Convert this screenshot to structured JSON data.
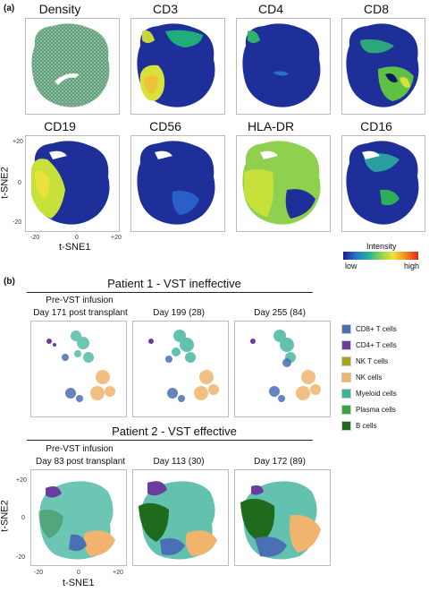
{
  "panel_a": {
    "letter": "(a)",
    "markers": [
      "Density",
      "CD3",
      "CD4",
      "CD8",
      "CD19",
      "CD56",
      "HLA-DR",
      "CD16"
    ],
    "y_axis_label": "t-SNE2",
    "x_axis_label": "t-SNE1",
    "y_ticks": [
      "+20",
      "0",
      "-20"
    ],
    "x_ticks": [
      "-20",
      "0",
      "+20"
    ],
    "intensity_legend": {
      "title": "Intensity",
      "low": "low",
      "high": "high",
      "colors": [
        "#1a1f8c",
        "#2c6fd1",
        "#1fb49a",
        "#8fd14f",
        "#f2e23a",
        "#f28a1e",
        "#e3241b"
      ]
    }
  },
  "panel_b": {
    "letter": "(b)",
    "patient1": {
      "title": "Patient 1 - VST ineffective",
      "pre_label_1": "Pre-VST infusion",
      "time_labels": [
        "Day 171 post transplant",
        "Day 199 (28)",
        "Day 255 (84)"
      ]
    },
    "patient2": {
      "title": "Patient 2 - VST effective",
      "pre_label_1": "Pre-VST infusion",
      "time_labels": [
        "Day 83 post transplant",
        "Day 113 (30)",
        "Day 172 (89)"
      ]
    },
    "y_axis_label": "t-SNE2",
    "x_axis_label": "t-SNE1",
    "y_ticks": [
      "+20",
      "0",
      "-20"
    ],
    "x_ticks": [
      "-20",
      "0",
      "+20"
    ],
    "legend": [
      {
        "label": "CD8+ T cells",
        "color": "#4a6fb5"
      },
      {
        "label": "CD4+ T cells",
        "color": "#6a3ca0"
      },
      {
        "label": "NK T cells",
        "color": "#a6a61e"
      },
      {
        "label": "NK cells",
        "color": "#f0b46e"
      },
      {
        "label": "Myeloid cells",
        "color": "#3cb39a"
      },
      {
        "label": "Plasma cells",
        "color": "#3aa23a"
      },
      {
        "label": "B cells",
        "color": "#1e6b1e"
      }
    ]
  }
}
